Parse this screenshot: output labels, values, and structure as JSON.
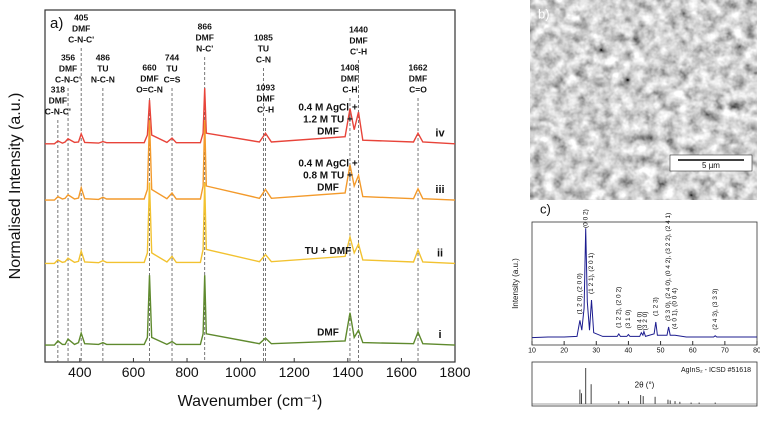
{
  "chart_data": [
    {
      "type": "line",
      "label": "a)",
      "xlabel": "Wavenumber (cm⁻¹)",
      "ylabel": "Normalised Intensity (a.u.)",
      "xlim": [
        270,
        1800
      ],
      "ylim": [
        0,
        100
      ],
      "xticks": [
        400,
        600,
        800,
        1000,
        1200,
        1400,
        1600,
        1800
      ],
      "x": [
        270,
        305,
        318,
        335,
        345,
        356,
        380,
        395,
        405,
        418,
        470,
        486,
        500,
        640,
        652,
        660,
        668,
        725,
        744,
        760,
        850,
        860,
        866,
        872,
        1070,
        1093,
        1115,
        1390,
        1408,
        1424,
        1440,
        1456,
        1645,
        1662,
        1680,
        1800
      ],
      "series": [
        {
          "label": [
            "0.4 M AgCl +",
            "1.2 M TU +",
            "DMF"
          ],
          "roman": "iv",
          "color": "#e8443a",
          "values": [
            62,
            62,
            62.8,
            62.2,
            62.5,
            63.4,
            62.4,
            62.5,
            64.8,
            62.4,
            62.2,
            62.6,
            62.3,
            62.3,
            64.5,
            74.4,
            64.5,
            62.4,
            63.6,
            62.3,
            62.3,
            65,
            77.8,
            65,
            62.5,
            65,
            62.5,
            64,
            72,
            66,
            71,
            63,
            62.5,
            65,
            62.5,
            62
          ]
        },
        {
          "label": [
            "0.4 M AgCl +",
            "0.8 M TU +",
            "DMF"
          ],
          "roman": "iii",
          "color": "#f39a2b",
          "values": [
            46,
            46,
            47,
            46.3,
            46.5,
            47.5,
            46.3,
            46.6,
            49.5,
            46.4,
            46.2,
            46.8,
            46.3,
            46.3,
            49,
            68.7,
            49,
            46.4,
            48,
            46.3,
            46.3,
            50,
            68.7,
            50,
            46.5,
            49,
            46.5,
            48,
            56,
            50,
            53,
            47,
            46.4,
            49.2,
            46.4,
            46
          ]
        },
        {
          "label": [
            "TU + DMF"
          ],
          "roman": "ii",
          "color": "#f2c230",
          "values": [
            28,
            28,
            29,
            28.3,
            28.5,
            29.5,
            28.3,
            28.6,
            31.5,
            28.4,
            28.2,
            28.8,
            28.3,
            28.3,
            31,
            51,
            31,
            28.4,
            30,
            28.3,
            28.3,
            32,
            51,
            32,
            28.5,
            30.5,
            28.5,
            30,
            35.5,
            31,
            33.5,
            29,
            28.4,
            31.8,
            28.4,
            28
          ]
        },
        {
          "label": [
            "DMF"
          ],
          "roman": "i",
          "color": "#5f8a2e",
          "values": [
            4.8,
            4.8,
            6,
            5,
            5,
            6.5,
            5,
            5.5,
            8.2,
            5.2,
            5,
            5.5,
            5,
            5,
            7,
            24.7,
            7,
            5,
            5.8,
            5,
            5,
            8,
            24.7,
            8,
            5.2,
            6.8,
            5.2,
            6,
            14,
            7,
            9,
            5.5,
            5.2,
            8.5,
            5.2,
            4.8
          ]
        }
      ],
      "annotations": [
        {
          "x": 318,
          "lines": [
            "318",
            "DMF",
            "C-N-C'"
          ]
        },
        {
          "x": 356,
          "lines": [
            "356",
            "DMF",
            "C-N-C'"
          ]
        },
        {
          "x": 405,
          "lines": [
            "405",
            "DMF",
            "C-N-C'"
          ]
        },
        {
          "x": 486,
          "lines": [
            "486",
            "TU",
            "N-C-N"
          ]
        },
        {
          "x": 660,
          "lines": [
            "660",
            "DMF",
            "O=C-N"
          ]
        },
        {
          "x": 744,
          "lines": [
            "744",
            "TU",
            "C=S"
          ]
        },
        {
          "x": 866,
          "lines": [
            "866",
            "DMF",
            "N-C'"
          ]
        },
        {
          "x": 1085,
          "lines": [
            "1085",
            "TU",
            "C-N"
          ]
        },
        {
          "x": 1093,
          "lines": [
            "1093",
            "DMF",
            "C'-H"
          ]
        },
        {
          "x": 1408,
          "lines": [
            "1408",
            "DMF",
            "C-H"
          ]
        },
        {
          "x": 1440,
          "lines": [
            "1440",
            "DMF",
            "C'-H"
          ]
        },
        {
          "x": 1662,
          "lines": [
            "1662",
            "DMF",
            "C=O"
          ]
        }
      ]
    },
    {
      "type": "image",
      "label": "b)",
      "scale_bar": "5 µm"
    },
    {
      "type": "line",
      "label": "c)",
      "xlabel": "2θ (°)",
      "ylabel": "Intensity (a.u.)",
      "color": "#1c1c8f",
      "xlim": [
        10,
        80
      ],
      "ylim": [
        0,
        100
      ],
      "xticks": [
        10,
        20,
        30,
        40,
        50,
        60,
        70,
        80
      ],
      "x": [
        10,
        15,
        20,
        24,
        24.9,
        25.5,
        26.2,
        26.7,
        27.2,
        27.9,
        28.5,
        29.2,
        32,
        36.5,
        37,
        37.5,
        39.5,
        40,
        40.5,
        43.5,
        44,
        44.5,
        44.8,
        45.3,
        48,
        48.5,
        49,
        52,
        52.5,
        53,
        54.5,
        58,
        66.5,
        67,
        67.5,
        72,
        80
      ],
      "values": [
        6,
        6.5,
        6.5,
        7,
        20,
        12,
        30,
        95,
        35,
        12,
        36.6,
        10,
        7,
        7,
        9,
        7,
        7,
        8.5,
        7,
        7,
        10,
        8,
        11,
        7,
        9,
        18.7,
        8,
        8,
        14.6,
        8,
        8,
        6.5,
        6.5,
        7.5,
        6.5,
        6.5,
        6.5
      ],
      "peak_labels": [
        {
          "x": 24.9,
          "text": "(1 2 0), (2 0 0)"
        },
        {
          "x": 26.7,
          "text": "(0 0 2)"
        },
        {
          "x": 28.5,
          "text": "(1 2 1), (2 0 1)"
        },
        {
          "x": 37,
          "text": "(1 2 2), (2 0 2)"
        },
        {
          "x": 40,
          "text": "(3 1 0)"
        },
        {
          "x": 43.6,
          "text": "(0 4 0)"
        },
        {
          "x": 45.2,
          "text": "(3 2 0)"
        },
        {
          "x": 48.5,
          "text": "(1 2 3)"
        },
        {
          "x": 52.4,
          "text": "(3 3 0), (2 4 0), (0 4 2), (3 2 2), (2 4 1)"
        },
        {
          "x": 54.4,
          "text": "(4 0 1), (0 0 4)"
        },
        {
          "x": 67,
          "text": "(2 4 3), (3 3 3)"
        }
      ],
      "reference": {
        "label": "AgInS₂ - ICSD #51618",
        "x": [
          24.9,
          25.4,
          26.7,
          28.4,
          37,
          40,
          43.8,
          44.6,
          48.3,
          52.3,
          53,
          54.5,
          56,
          59.5,
          62,
          67
        ],
        "values": [
          40,
          30,
          100,
          55,
          8,
          8,
          25,
          22,
          20,
          12,
          10,
          8,
          6,
          4,
          4,
          4
        ]
      }
    }
  ]
}
